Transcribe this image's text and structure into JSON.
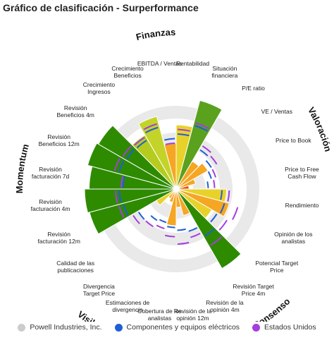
{
  "chart_data": {
    "type": "polar-bar",
    "title": "Gráfico de clasificación - Surperformance",
    "categories": [
      "Crecimiento Ingresos",
      "Crecimiento Beneficios",
      "EBITDA / Ventas",
      "Rentabilidad",
      "Situación financiera",
      "P/E ratio",
      "VE / Ventas",
      "Price to Book",
      "Price to Free Cash Flow",
      "Rendimiento",
      "Opinión de los analistas",
      "Potencial Target Price",
      "Revisión Target Price 4m",
      "Revisión de la opinión 4m",
      "Revisión de la opinión 12m",
      "Cobertura de los analistas",
      "Estimaciones de divergencia",
      "Divergencia Target Price",
      "Calidad de las publicaciones",
      "Revisión facturación 12m",
      "Revisión facturación 4m",
      "Revisión facturación 7d",
      "Revisión Beneficios 12m",
      "Revisión Beneficios 4m"
    ],
    "groups": [
      {
        "name": "Finanzas",
        "categories": [
          0,
          1,
          2,
          3,
          4
        ]
      },
      {
        "name": "Valoración",
        "categories": [
          5,
          6,
          7,
          8,
          9
        ]
      },
      {
        "name": "Consenso",
        "categories": [
          10,
          11,
          12,
          13,
          14
        ]
      },
      {
        "name": "Visibilidad",
        "categories": [
          15,
          16,
          17,
          18
        ]
      },
      {
        "name": "Momentum",
        "categories": [
          19,
          20,
          21,
          22,
          23
        ]
      }
    ],
    "rlim": [
      0,
      100
    ],
    "series": [
      {
        "name": "Powell Industries, Inc.",
        "color": "#cccccc",
        "values": [
          68,
          82,
          50,
          70,
          100,
          35,
          40,
          22,
          14,
          55,
          60,
          45,
          100,
          30,
          20,
          40,
          15,
          12,
          25,
          98,
          100,
          95,
          100,
          98
        ],
        "colors": [
          "#b5cc1e",
          "#c4d32a",
          "#f5a623",
          "#e8d22a",
          "#5aa11e",
          "#f5a623",
          "#f5a623",
          "#f5a623",
          "#e84a1b",
          "#e8d22a",
          "#f5a623",
          "#e8d22a",
          "#2e8b00",
          "#f5a623",
          "#f5a623",
          "#f5a623",
          "#f5a623",
          "#f5a623",
          "#e8d22a",
          "#2e8b00",
          "#2e8b00",
          "#2e8b00",
          "#2e8b00",
          "#2e8b00"
        ]
      },
      {
        "name": "Componentes y equipos eléctricos",
        "color": "#1f5fd6",
        "values": [
          62,
          70,
          55,
          60,
          72,
          50,
          45,
          40,
          35,
          50,
          55,
          52,
          60,
          48,
          45,
          42,
          38,
          40,
          48,
          60,
          62,
          58,
          65,
          63
        ]
      },
      {
        "name": "Estados Unidos",
        "color": "#a43ee0",
        "values": [
          66,
          74,
          50,
          65,
          75,
          55,
          52,
          45,
          42,
          58,
          70,
          65,
          72,
          55,
          60,
          52,
          45,
          48,
          55,
          65,
          66,
          60,
          70,
          68
        ]
      }
    ]
  }
}
